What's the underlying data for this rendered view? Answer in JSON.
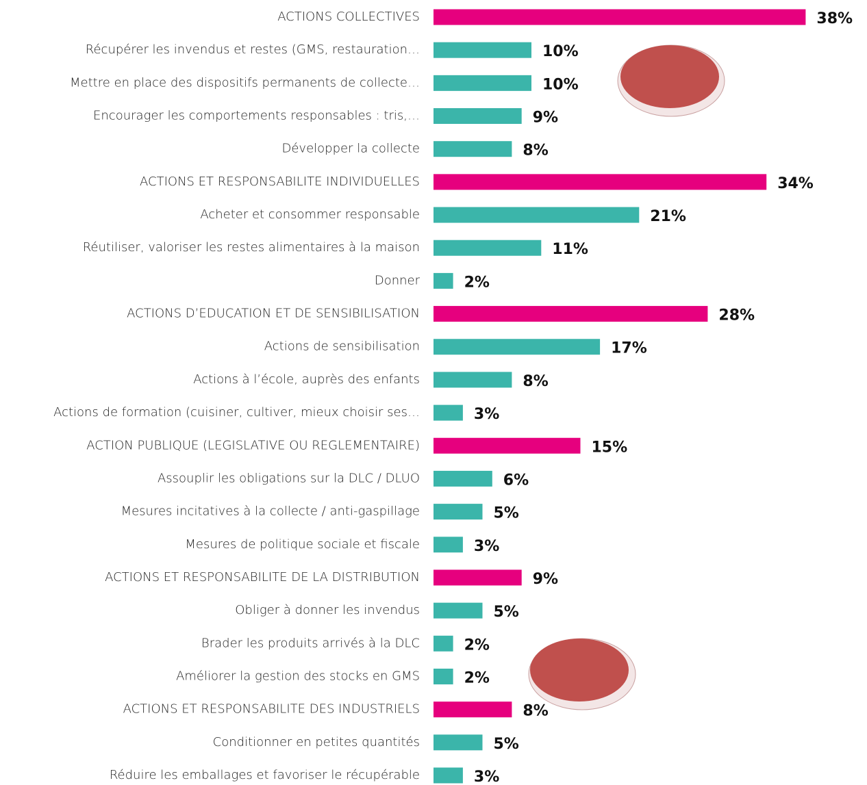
{
  "chart_data": {
    "type": "bar",
    "orientation": "horizontal",
    "categories": [
      "ACTIONS COLLECTIVES",
      "Récupérer les invendus et restes (GMS, restauration…",
      "Mettre en place des dispositifs permanents de collecte…",
      "Encourager les comportements responsables : tris,…",
      "Développer la collecte",
      "ACTIONS ET RESPONSABILITE INDIVIDUELLES",
      "Acheter et consommer responsable",
      "Réutiliser, valoriser les restes alimentaires à la maison",
      "Donner",
      "ACTIONS D’EDUCATION ET DE SENSIBILISATION",
      "Actions de sensibilisation",
      "Actions à l’école, auprès des enfants",
      "Actions de formation (cuisiner, cultiver, mieux choisir ses…",
      "ACTION PUBLIQUE (LEGISLATIVE OU REGLEMENTAIRE)",
      "Assouplir les obligations sur la DLC / DLUO",
      "Mesures incitatives à la collecte / anti-gaspillage",
      "Mesures de politique sociale et fiscale",
      "ACTIONS ET RESPONSABILITE DE LA DISTRIBUTION",
      "Obliger à donner les invendus",
      "Brader les produits arrivés à la DLC",
      "Améliorer la gestion des stocks en GMS",
      "ACTIONS ET RESPONSABILITE DES INDUSTRIELS",
      "Conditionner en petites quantités",
      "Réduire les emballages et favoriser le récupérable"
    ],
    "values": [
      38,
      10,
      10,
      9,
      8,
      34,
      21,
      11,
      2,
      28,
      17,
      8,
      3,
      15,
      6,
      5,
      3,
      9,
      5,
      2,
      2,
      8,
      5,
      3
    ],
    "value_labels": [
      "38%",
      "10%",
      "10%",
      "9%",
      "8%",
      "34%",
      "21%",
      "11%",
      "2%",
      "28%",
      "17%",
      "8%",
      "3%",
      "15%",
      "6%",
      "5%",
      "3%",
      "9%",
      "5%",
      "2%",
      "2%",
      "8%",
      "5%",
      "3%"
    ],
    "colors": [
      "#e6007e",
      "#3bb5aa",
      "#3bb5aa",
      "#3bb5aa",
      "#3bb5aa",
      "#e6007e",
      "#3bb5aa",
      "#3bb5aa",
      "#3bb5aa",
      "#e6007e",
      "#3bb5aa",
      "#3bb5aa",
      "#3bb5aa",
      "#e6007e",
      "#3bb5aa",
      "#3bb5aa",
      "#3bb5aa",
      "#e6007e",
      "#3bb5aa",
      "#3bb5aa",
      "#3bb5aa",
      "#e6007e",
      "#3bb5aa",
      "#3bb5aa"
    ]
  }
}
